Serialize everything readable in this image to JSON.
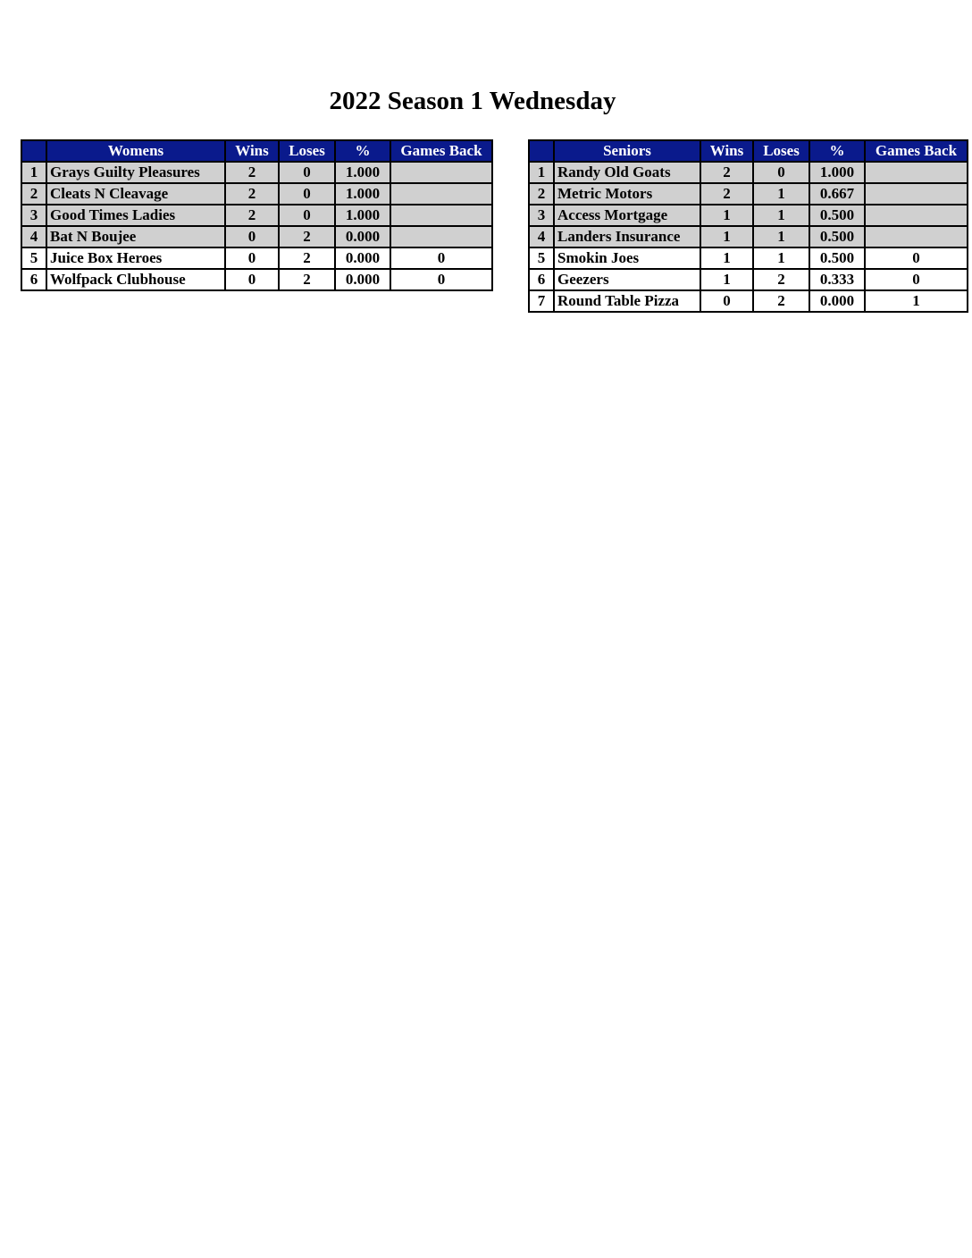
{
  "title": "2022 Season 1 Wednesday",
  "colors": {
    "header_bg": "#0a1a8c",
    "top_rows_bg": "#d0d0d0"
  },
  "tables": [
    {
      "id": "womens",
      "headers": [
        "",
        "Womens",
        "Wins",
        "Loses",
        "%",
        "Games Back"
      ],
      "widths": [
        20,
        192,
        52,
        55,
        54,
        106
      ],
      "rows": [
        {
          "rank": "1",
          "team": "Grays Guilty Pleasures",
          "wins": "2",
          "loses": "0",
          "pct": "1.000",
          "gb": "",
          "shaded": true
        },
        {
          "rank": "2",
          "team": "Cleats N Cleavage",
          "wins": "2",
          "loses": "0",
          "pct": "1.000",
          "gb": "",
          "shaded": true
        },
        {
          "rank": "3",
          "team": "Good Times Ladies",
          "wins": "2",
          "loses": "0",
          "pct": "1.000",
          "gb": "",
          "shaded": true
        },
        {
          "rank": "4",
          "team": "Bat N Boujee",
          "wins": "0",
          "loses": "2",
          "pct": "0.000",
          "gb": "",
          "shaded": true
        },
        {
          "rank": "5",
          "team": "Juice Box Heroes",
          "wins": "0",
          "loses": "2",
          "pct": "0.000",
          "gb": "0",
          "shaded": false
        },
        {
          "rank": "6",
          "team": "Wolfpack Clubhouse",
          "wins": "0",
          "loses": "2",
          "pct": "0.000",
          "gb": "0",
          "shaded": false
        }
      ]
    },
    {
      "id": "seniors",
      "headers": [
        "",
        "Seniors",
        "Wins",
        "Loses",
        "%",
        "Games Back"
      ],
      "widths": [
        20,
        156,
        51,
        55,
        54,
        107
      ],
      "rows": [
        {
          "rank": "1",
          "team": "Randy Old Goats",
          "wins": "2",
          "loses": "0",
          "pct": "1.000",
          "gb": "",
          "shaded": true
        },
        {
          "rank": "2",
          "team": "Metric Motors",
          "wins": "2",
          "loses": "1",
          "pct": "0.667",
          "gb": "",
          "shaded": true
        },
        {
          "rank": "3",
          "team": "Access Mortgage",
          "wins": "1",
          "loses": "1",
          "pct": "0.500",
          "gb": "",
          "shaded": true
        },
        {
          "rank": "4",
          "team": "Landers Insurance",
          "wins": "1",
          "loses": "1",
          "pct": "0.500",
          "gb": "",
          "shaded": true
        },
        {
          "rank": "5",
          "team": "Smokin Joes",
          "wins": "1",
          "loses": "1",
          "pct": "0.500",
          "gb": "0",
          "shaded": false
        },
        {
          "rank": "6",
          "team": "Geezers",
          "wins": "1",
          "loses": "2",
          "pct": "0.333",
          "gb": "0",
          "shaded": false
        },
        {
          "rank": "7",
          "team": "Round Table Pizza",
          "wins": "0",
          "loses": "2",
          "pct": "0.000",
          "gb": "1",
          "shaded": false
        }
      ]
    }
  ]
}
